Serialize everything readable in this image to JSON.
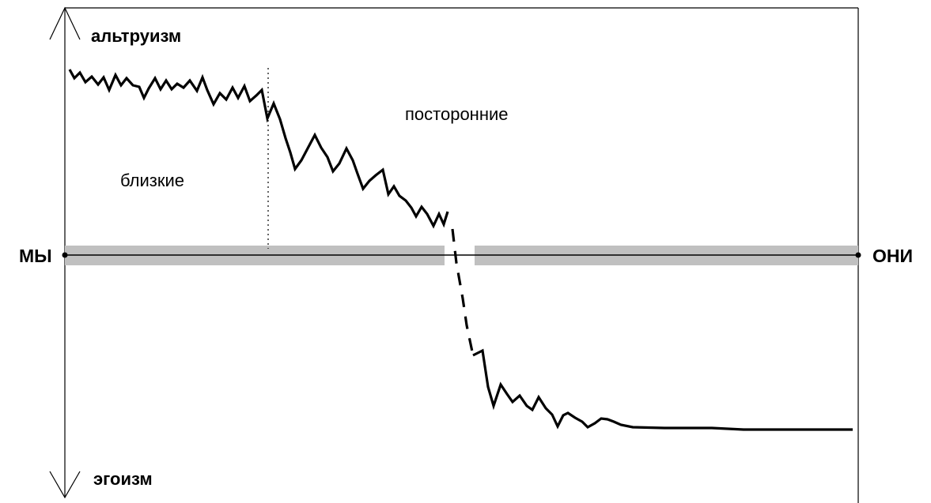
{
  "labels": {
    "top": "альтруизм",
    "bottom": "эгоизм",
    "left": "МЫ",
    "right": "ОНИ",
    "near": "близкие",
    "strangers": "посторонние"
  },
  "colors": {
    "ink": "#000000",
    "band": "#c0c0c0",
    "background": "#ffffff"
  }
}
